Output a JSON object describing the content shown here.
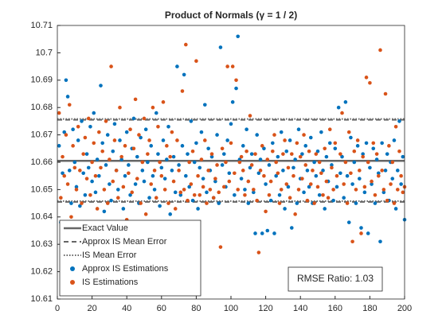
{
  "chart_data": {
    "type": "scatter",
    "title": "Product of Normals (γ = 1 / 2)",
    "xlim": [
      0,
      200
    ],
    "xticks": [
      0,
      20,
      40,
      60,
      80,
      100,
      120,
      140,
      160,
      180,
      200
    ],
    "ylim": [
      10.61,
      10.71
    ],
    "yticks": [
      10.61,
      10.62,
      10.63,
      10.64,
      10.65,
      10.66,
      10.67,
      10.68,
      10.69,
      10.7,
      10.71
    ],
    "legend": "southwest",
    "reference_lines": [
      {
        "name": "Exact Value",
        "color": "#666666",
        "style": "solid",
        "values": [
          10.6605
        ]
      },
      {
        "name": "Approx IS Mean Error",
        "color": "#666666",
        "style": "dashed",
        "values": [
          10.6455,
          10.6755
        ]
      },
      {
        "name": "IS Mean Error",
        "color": "#666666",
        "style": "dotted",
        "values": [
          10.6458,
          10.6758
        ]
      }
    ],
    "x": [
      1,
      2,
      3,
      4,
      5,
      6,
      7,
      8,
      9,
      10,
      11,
      12,
      13,
      14,
      15,
      16,
      17,
      18,
      19,
      20,
      21,
      22,
      23,
      24,
      25,
      26,
      27,
      28,
      29,
      30,
      31,
      32,
      33,
      34,
      35,
      36,
      37,
      38,
      39,
      40,
      41,
      42,
      43,
      44,
      45,
      46,
      47,
      48,
      49,
      50,
      51,
      52,
      53,
      54,
      55,
      56,
      57,
      58,
      59,
      60,
      61,
      62,
      63,
      64,
      65,
      66,
      67,
      68,
      69,
      70,
      71,
      72,
      73,
      74,
      75,
      76,
      77,
      78,
      79,
      80,
      81,
      82,
      83,
      84,
      85,
      86,
      87,
      88,
      89,
      90,
      91,
      92,
      93,
      94,
      95,
      96,
      97,
      98,
      99,
      100,
      101,
      102,
      103,
      104,
      105,
      106,
      107,
      108,
      109,
      110,
      111,
      112,
      113,
      114,
      115,
      116,
      117,
      118,
      119,
      120,
      121,
      122,
      123,
      124,
      125,
      126,
      127,
      128,
      129,
      130,
      131,
      132,
      133,
      134,
      135,
      136,
      137,
      138,
      139,
      140,
      141,
      142,
      143,
      144,
      145,
      146,
      147,
      148,
      149,
      150,
      151,
      152,
      153,
      154,
      155,
      156,
      157,
      158,
      159,
      160,
      161,
      162,
      163,
      164,
      165,
      166,
      167,
      168,
      169,
      170,
      171,
      172,
      173,
      174,
      175,
      176,
      177,
      178,
      179,
      180,
      181,
      182,
      183,
      184,
      185,
      186,
      187,
      188,
      189,
      190,
      191,
      192,
      193,
      194,
      195,
      196,
      197,
      198,
      199,
      200
    ],
    "series": [
      {
        "name": "Approx IS Estimations",
        "color": "#0072BD",
        "values": [
          10.666,
          10.638,
          10.656,
          10.671,
          10.69,
          10.684,
          10.657,
          10.645,
          10.672,
          10.66,
          10.651,
          10.668,
          10.644,
          10.675,
          10.656,
          10.648,
          10.663,
          10.658,
          10.673,
          10.653,
          10.678,
          10.649,
          10.661,
          10.655,
          10.688,
          10.667,
          10.642,
          10.659,
          10.67,
          10.652,
          10.646,
          10.664,
          10.674,
          10.657,
          10.65,
          10.668,
          10.661,
          10.643,
          10.655,
          10.671,
          10.659,
          10.648,
          10.665,
          10.676,
          10.652,
          10.662,
          10.645,
          10.669,
          10.657,
          10.653,
          10.672,
          10.66,
          10.647,
          10.666,
          10.655,
          10.65,
          10.678,
          10.663,
          10.644,
          10.658,
          10.668,
          10.654,
          10.661,
          10.673,
          10.641,
          10.657,
          10.662,
          10.649,
          10.695,
          10.659,
          10.648,
          10.666,
          10.692,
          10.655,
          10.663,
          10.651,
          10.675,
          10.646,
          10.66,
          10.667,
          10.643,
          10.658,
          10.671,
          10.654,
          10.681,
          10.649,
          10.665,
          10.657,
          10.662,
          10.647,
          10.653,
          10.67,
          10.645,
          10.702,
          10.659,
          10.663,
          10.651,
          10.668,
          10.656,
          10.674,
          10.682,
          10.648,
          10.687,
          10.706,
          10.661,
          10.654,
          10.666,
          10.65,
          10.672,
          10.645,
          10.658,
          10.663,
          10.649,
          10.634,
          10.67,
          10.656,
          10.661,
          10.634,
          10.665,
          10.652,
          10.635,
          10.659,
          10.646,
          10.667,
          10.634,
          10.655,
          10.662,
          10.648,
          10.671,
          10.657,
          10.643,
          10.664,
          10.651,
          10.668,
          10.636,
          10.658,
          10.661,
          10.645,
          10.672,
          10.654,
          10.663,
          10.649,
          10.666,
          10.657,
          10.651,
          10.669,
          10.645,
          10.66,
          10.655,
          10.664,
          10.648,
          10.671,
          10.657,
          10.643,
          10.662,
          10.653,
          10.667,
          10.659,
          10.646,
          10.665,
          10.651,
          10.68,
          10.656,
          10.662,
          10.647,
          10.682,
          10.655,
          10.638,
          10.669,
          10.652,
          10.66,
          10.645,
          10.666,
          10.654,
          10.636,
          10.663,
          10.649,
          10.667,
          10.634,
          10.658,
          10.652,
          10.665,
          10.645,
          10.661,
          10.656,
          10.631,
          10.667,
          10.649,
          10.657,
          10.663,
          10.646,
          10.66,
          10.654,
          10.668,
          10.643,
          10.657,
          10.675,
          10.652,
          10.662,
          10.639
        ]
      },
      {
        "name": "IS Estimations",
        "color": "#D95319",
        "values": [
          10.678,
          10.647,
          10.662,
          10.655,
          10.67,
          10.652,
          10.681,
          10.64,
          10.666,
          10.658,
          10.65,
          10.673,
          10.657,
          10.645,
          10.663,
          10.669,
          10.654,
          10.676,
          10.648,
          10.66,
          10.667,
          10.655,
          10.643,
          10.671,
          10.658,
          10.664,
          10.65,
          10.675,
          10.645,
          10.661,
          10.695,
          10.653,
          10.668,
          10.657,
          10.647,
          10.68,
          10.662,
          10.651,
          10.666,
          10.639,
          10.656,
          10.672,
          10.649,
          10.665,
          10.683,
          10.654,
          10.67,
          10.645,
          10.66,
          10.676,
          10.641,
          10.663,
          10.668,
          10.652,
          10.68,
          10.657,
          10.647,
          10.673,
          10.66,
          10.655,
          10.682,
          10.65,
          10.666,
          10.645,
          10.662,
          10.671,
          10.653,
          10.643,
          10.668,
          10.657,
          10.649,
          10.686,
          10.65,
          10.703,
          10.646,
          10.66,
          10.652,
          10.664,
          10.648,
          10.697,
          10.655,
          10.648,
          10.661,
          10.651,
          10.668,
          10.645,
          10.657,
          10.65,
          10.663,
          10.647,
          10.654,
          10.659,
          10.649,
          10.629,
          10.665,
          10.651,
          10.66,
          10.695,
          10.653,
          10.667,
          10.695,
          10.656,
          10.69,
          10.65,
          10.66,
          10.662,
          10.657,
          10.648,
          10.664,
          10.653,
          10.677,
          10.659,
          10.65,
          10.663,
          10.646,
          10.627,
          10.657,
          10.666,
          10.655,
          10.642,
          10.661,
          10.648,
          10.653,
          10.664,
          10.67,
          10.66,
          10.656,
          10.645,
          10.65,
          10.663,
          10.668,
          10.652,
          10.658,
          10.647,
          10.663,
          10.655,
          10.641,
          10.667,
          10.65,
          10.662,
          10.654,
          10.67,
          10.659,
          10.646,
          10.664,
          10.652,
          10.657,
          10.645,
          10.663,
          10.651,
          10.66,
          10.656,
          10.648,
          10.665,
          10.653,
          10.647,
          10.672,
          10.658,
          10.65,
          10.667,
          10.655,
          10.621,
          10.663,
          10.678,
          10.652,
          10.66,
          10.645,
          10.671,
          10.656,
          10.631,
          10.664,
          10.65,
          10.668,
          10.657,
          10.634,
          10.662,
          10.651,
          10.691,
          10.66,
          10.689,
          10.653,
          10.667,
          10.648,
          10.663,
          10.655,
          10.701,
          10.657,
          10.65,
          10.685,
          10.646,
          10.666,
          10.652,
          10.66,
          10.645,
          10.673,
          10.65,
          10.664,
          10.655,
          10.649,
          10.651
        ]
      }
    ],
    "annotations": [
      "RMSE Ratio: 1.03"
    ]
  }
}
